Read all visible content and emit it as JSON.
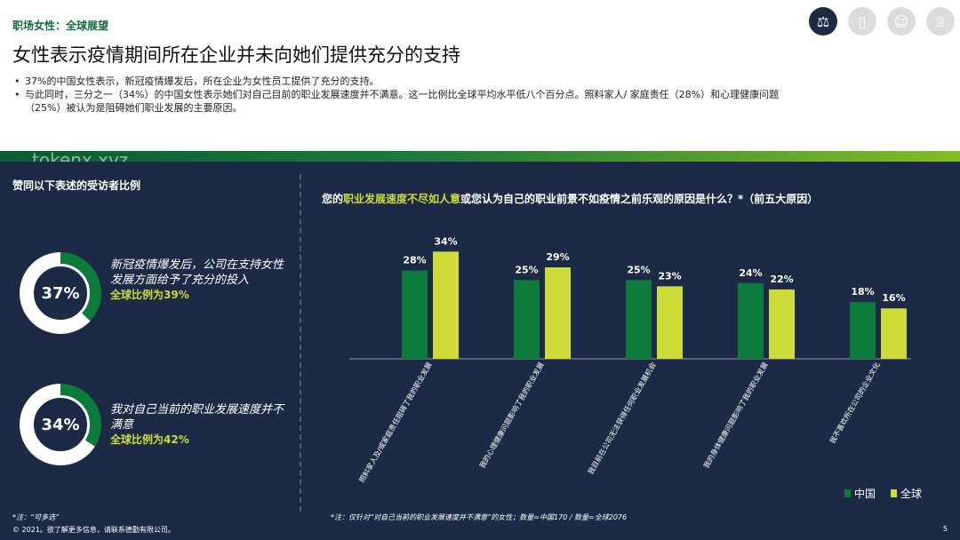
{
  "header": {
    "section_label": "职场女性：全球展望",
    "title": "女性表示疫情期间所在企业并未向她们提供充分的支持",
    "bullets": [
      "37%的中国女性表示，新冠疫情爆发后，所在企业为女性员工提供了充分的支持。",
      "与此同时，三分之一（34%）的中国女性表示她们对自己目前的职业发展速度并不满意。这一比例比全球平均水平低八个百分点。照料家人/ 家庭责任（28%）和心理健康问题",
      "（25%）被认为是阻碍她们职业发展的主要原因。"
    ],
    "icons": [
      "scale-icon",
      "book-icon",
      "voice-icon",
      "trophy-icon"
    ]
  },
  "watermark": "tokenx.xyz",
  "left_panel": {
    "title": "赞同以下表述的受访者比例",
    "stats": [
      {
        "value": "37%",
        "fraction": 0.37,
        "text": "新冠疫情爆发后，公司在支持女性发展方面给予了充分的投入",
        "global": "全球比例为39%"
      },
      {
        "value": "34%",
        "fraction": 0.34,
        "text": "我对自己当前的职业发展速度并不满意",
        "global": "全球比例为42%"
      }
    ],
    "note": "*注：“可多选”",
    "copyright": "© 2021。欲了解更多信息，请联系德勤有限公司。"
  },
  "chart_title": {
    "prefix": "您的",
    "highlight": "职业发展速度不尽如人意",
    "suffix": "或您认为自己的职业前景不如疫情之前乐观的原因是什么？*（前五大原因）"
  },
  "chart_note": "*注：仅针对“对自己当前的职业发展速度并不满意”的女性；数量=中国170 / 数量=全球2076",
  "page_number": "5",
  "colors": {
    "china": "#0c7a3a",
    "global": "#cddc39",
    "panel": "#1c2a45"
  },
  "chart_data": {
    "type": "bar",
    "categories": [
      "照料家人及/或家庭责任阻碍了我的职业发展",
      "我的心理健康问题影响了我的职业发展",
      "我目前在公司无法获得任何职业发展机会",
      "我的身体健康问题影响了我的职业发展",
      "我不喜欢所在公司的企业文化"
    ],
    "series": [
      {
        "name": "中国",
        "values": [
          28,
          25,
          25,
          24,
          18
        ]
      },
      {
        "name": "全球",
        "values": [
          34,
          29,
          23,
          22,
          16
        ]
      }
    ],
    "value_labels": [
      [
        "28%",
        "25%",
        "25%",
        "24%",
        "18%"
      ],
      [
        "34%",
        "29%",
        "23%",
        "22%",
        "16%"
      ]
    ],
    "legend_position": "bottom-right",
    "ylim": [
      0,
      36
    ]
  }
}
